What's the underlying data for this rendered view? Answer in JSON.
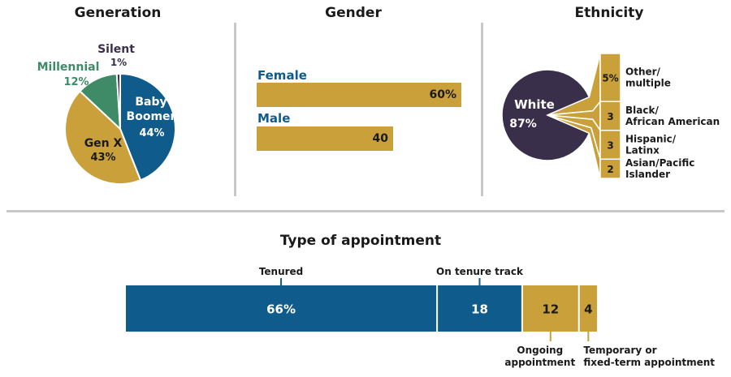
{
  "colors": {
    "blue": "#0f5c8c",
    "gold": "#c9a03a",
    "green": "#3f8a67",
    "navy": "#3a2f4a",
    "white": "#ffffff",
    "dark": "#1a1a1a",
    "separator": "#c8c8c8"
  },
  "chart_data": [
    {
      "type": "pie",
      "title": "Generation",
      "slices": [
        {
          "name": "Baby Boomer",
          "value": 44,
          "label": "44%",
          "color": "#0f5c8c"
        },
        {
          "name": "Gen X",
          "value": 43,
          "label": "43%",
          "color": "#c9a03a"
        },
        {
          "name": "Millennial",
          "value": 12,
          "label": "12%",
          "color": "#3f8a67"
        },
        {
          "name": "Silent",
          "value": 1,
          "label": "1%",
          "color": "#3a2f4a"
        }
      ]
    },
    {
      "type": "bar",
      "title": "Gender",
      "categories": [
        "Female",
        "Male"
      ],
      "values": [
        60,
        40
      ],
      "value_labels": [
        "60%",
        "40"
      ]
    },
    {
      "type": "pie",
      "title": "Ethnicity",
      "slices": [
        {
          "name": "White",
          "value": 87,
          "label": "87%"
        },
        {
          "name": "Other/ multiple",
          "value": 5,
          "label": "5%",
          "name_lines": [
            "Other/",
            "multiple"
          ]
        },
        {
          "name": "Black/ African American",
          "value": 3,
          "label": "3",
          "name_lines": [
            "Black/",
            "African American"
          ]
        },
        {
          "name": "Hispanic/ Latinx",
          "value": 3,
          "label": "3",
          "name_lines": [
            "Hispanic/",
            "Latinx"
          ]
        },
        {
          "name": "Asian/Pacific Islander",
          "value": 2,
          "label": "2",
          "name_lines": [
            "Asian/Pacific",
            "Islander"
          ]
        }
      ]
    },
    {
      "type": "bar",
      "title": "Type of appointment",
      "categories": [
        "Tenured",
        "On tenure track",
        "Ongoing appointment",
        "Temporary or fixed-term appointment"
      ],
      "values": [
        66,
        18,
        12,
        4
      ],
      "value_labels": [
        "66%",
        "18",
        "12",
        "4"
      ],
      "category_lines": [
        [
          "Tenured"
        ],
        [
          "On tenure track"
        ],
        [
          "Ongoing",
          "appointment"
        ],
        [
          "Temporary or",
          "fixed-term appointment"
        ]
      ]
    }
  ]
}
